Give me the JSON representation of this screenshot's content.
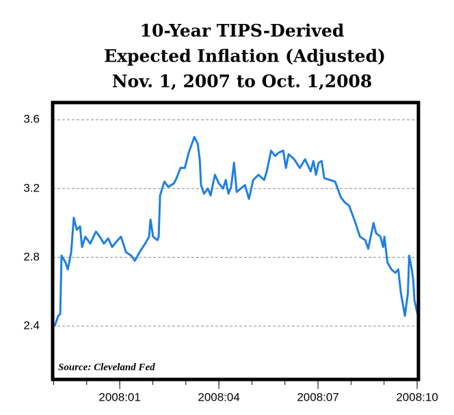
{
  "chart_data": {
    "type": "line",
    "title": [
      "10-Year TIPS-Derived",
      "Expected Inflation (Adjusted)",
      "Nov. 1, 2007 to Oct. 1,2008"
    ],
    "annotation": "Source: Cleveland Fed",
    "x": [
      -1.97,
      -1.86,
      -1.8,
      -1.76,
      -1.64,
      -1.57,
      -1.47,
      -1.39,
      -1.3,
      -1.2,
      -1.14,
      -1.04,
      -0.89,
      -0.72,
      -0.6,
      -0.48,
      -0.35,
      -0.23,
      -0.06,
      0.04,
      0.19,
      0.35,
      0.46,
      0.6,
      0.77,
      0.89,
      0.93,
      1.01,
      1.14,
      1.18,
      1.22,
      1.35,
      1.47,
      1.64,
      1.72,
      1.84,
      1.97,
      2.09,
      2.26,
      2.36,
      2.42,
      2.46,
      2.55,
      2.67,
      2.75,
      2.88,
      3.0,
      3.13,
      3.21,
      3.29,
      3.37,
      3.46,
      3.54,
      3.66,
      3.79,
      3.91,
      4.04,
      4.2,
      4.37,
      4.45,
      4.58,
      4.7,
      4.82,
      4.95,
      5.03,
      5.11,
      5.28,
      5.45,
      5.61,
      5.78,
      5.86,
      5.94,
      6.02,
      6.11,
      6.19,
      6.36,
      6.52,
      6.69,
      6.81,
      6.94,
      7.1,
      7.27,
      7.43,
      7.52,
      7.64,
      7.68,
      7.76,
      7.89,
      7.97,
      8.01,
      8.1,
      8.22,
      8.34,
      8.43,
      8.51,
      8.63,
      8.72,
      8.76,
      8.84,
      8.88,
      8.92,
      9.01
    ],
    "series": [
      {
        "name": "Expected Inflation",
        "color": "#1f7fe0",
        "values": [
          2.4,
          2.46,
          2.47,
          2.81,
          2.77,
          2.73,
          2.83,
          3.03,
          2.96,
          2.98,
          2.86,
          2.92,
          2.88,
          2.95,
          2.92,
          2.88,
          2.91,
          2.86,
          2.9,
          2.92,
          2.83,
          2.81,
          2.78,
          2.83,
          2.88,
          2.92,
          3.02,
          2.92,
          2.9,
          2.92,
          3.16,
          3.24,
          3.21,
          3.23,
          3.26,
          3.32,
          3.32,
          3.41,
          3.5,
          3.46,
          3.37,
          3.22,
          3.17,
          3.2,
          3.16,
          3.28,
          3.23,
          3.2,
          3.25,
          3.17,
          3.21,
          3.35,
          3.18,
          3.2,
          3.22,
          3.14,
          3.25,
          3.28,
          3.25,
          3.3,
          3.42,
          3.39,
          3.41,
          3.42,
          3.32,
          3.4,
          3.37,
          3.32,
          3.37,
          3.3,
          3.36,
          3.28,
          3.35,
          3.36,
          3.26,
          3.25,
          3.24,
          3.15,
          3.12,
          3.1,
          3.02,
          2.92,
          2.9,
          2.85,
          2.96,
          3.0,
          2.94,
          2.92,
          2.86,
          2.92,
          2.77,
          2.73,
          2.71,
          2.73,
          2.59,
          2.46,
          2.59,
          2.81,
          2.73,
          2.67,
          2.55,
          2.47
        ]
      }
    ],
    "xlim": [
      -2.03,
      9.04
    ],
    "xticks": [
      {
        "value": 0,
        "label": "2008:01"
      },
      {
        "value": 3,
        "label": "2008:04"
      },
      {
        "value": 6,
        "label": "2008:07"
      },
      {
        "value": 9,
        "label": "2008:10"
      }
    ],
    "xminorticks": [
      -2,
      -1,
      0,
      1,
      2,
      3,
      4,
      5,
      6,
      7,
      8,
      9
    ],
    "ylim": [
      2.09,
      3.7
    ],
    "yticks": [
      {
        "value": 2.4,
        "label": "2.4"
      },
      {
        "value": 2.8,
        "label": "2.8"
      },
      {
        "value": 3.2,
        "label": "3.2"
      },
      {
        "value": 3.6,
        "label": "3.6"
      }
    ],
    "grid": true
  }
}
